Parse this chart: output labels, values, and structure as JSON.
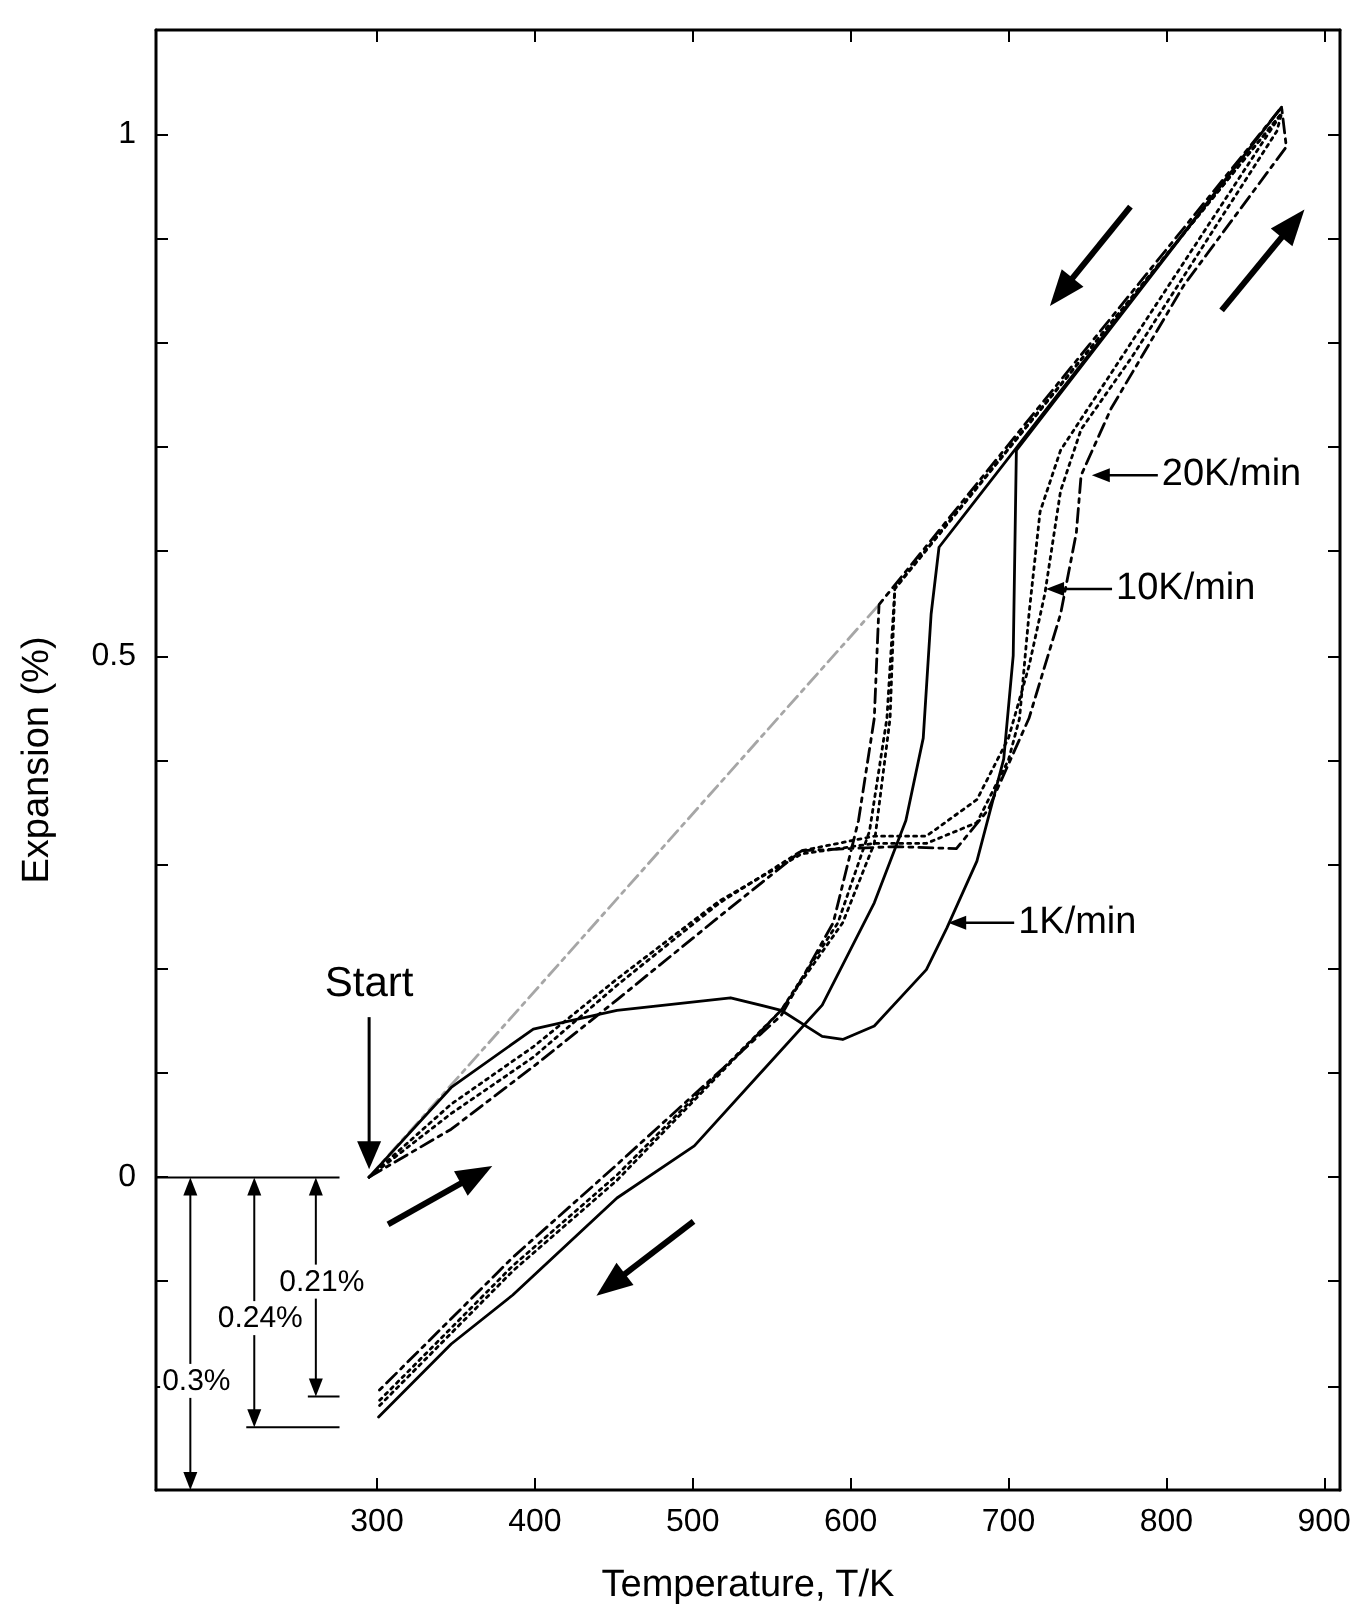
{
  "chart_data": {
    "type": "line",
    "xlabel": "Temperature, T/K",
    "ylabel": "Expansion (%)",
    "xlim": [
      160,
      910
    ],
    "xticks": [
      300,
      400,
      500,
      600,
      700,
      800,
      900
    ],
    "ylim": [
      -0.3,
      1.1
    ],
    "yticks": [
      {
        "value": -0.2,
        "label": null
      },
      {
        "value": -0.1,
        "label": null
      },
      0,
      {
        "value": 0.1,
        "label": null
      },
      {
        "value": 0.2,
        "label": null
      },
      {
        "value": 0.3,
        "label": null
      },
      {
        "value": 0.4,
        "label": null
      },
      0.5,
      {
        "value": 0.6,
        "label": null
      },
      {
        "value": 0.7,
        "label": null
      },
      {
        "value": 0.8,
        "label": null
      },
      {
        "value": 0.9,
        "label": null
      },
      1
    ],
    "marker": "none",
    "series": [
      {
        "color": "#a6a6a6",
        "line_style": "dashed",
        "x": [
          295,
          618
        ],
        "values": [
          0,
          0.549
        ]
      },
      {
        "color": "#000000",
        "line_style": "solid",
        "x": [
          295,
          347,
          399,
          452,
          524,
          556,
          582,
          595,
          615,
          648,
          661,
          680,
          697,
          703,
          705,
          873,
          656,
          651,
          646,
          635,
          615,
          582,
          501,
          452,
          386,
          347,
          301
        ],
        "values": [
          0,
          0.086,
          0.142,
          0.16,
          0.172,
          0.16,
          0.135,
          0.132,
          0.145,
          0.199,
          0.239,
          0.303,
          0.401,
          0.5,
          0.697,
          1.026,
          0.604,
          0.54,
          0.421,
          0.342,
          0.263,
          0.165,
          0.03,
          -0.02,
          -0.113,
          -0.16,
          -0.23
        ]
      },
      {
        "color": "#000000",
        "line_style": "dotted",
        "x": [
          295,
          347,
          399,
          452,
          517,
          569,
          615,
          648,
          680,
          700,
          707,
          713,
          720,
          733,
          873,
          628,
          625,
          615,
          595,
          556,
          452,
          386,
          301
        ],
        "values": [
          0,
          0.07,
          0.125,
          0.19,
          0.265,
          0.31,
          0.32,
          0.32,
          0.34,
          0.4,
          0.44,
          0.54,
          0.638,
          0.697,
          1.02,
          0.565,
          0.44,
          0.32,
          0.244,
          0.16,
          0.002,
          -0.085,
          -0.215
        ]
      },
      {
        "color": "#000000",
        "line_style": "dotted",
        "x": [
          295,
          347,
          399,
          452,
          517,
          569,
          615,
          648,
          680,
          700,
          713,
          723,
          733,
          746,
          778,
          870,
          873,
          628,
          623,
          612,
          592,
          556,
          452,
          386,
          301
        ],
        "values": [
          0,
          0.061,
          0.115,
          0.184,
          0.263,
          0.313,
          0.327,
          0.327,
          0.362,
          0.421,
          0.49,
          0.559,
          0.658,
          0.717,
          0.786,
          1.003,
          1.02,
          0.564,
          0.44,
          0.332,
          0.244,
          0.16,
          -0.003,
          -0.09,
          -0.22
        ]
      },
      {
        "color": "#000000",
        "line_style": "dashed",
        "x": [
          295,
          347,
          399,
          452,
          517,
          569,
          628,
          667,
          687,
          713,
          733,
          743,
          746,
          765,
          811,
          876,
          873,
          618,
          615,
          605,
          589,
          556,
          452,
          386,
          301
        ],
        "values": [
          0,
          0.046,
          0.106,
          0.17,
          0.25,
          0.313,
          0.317,
          0.315,
          0.352,
          0.44,
          0.54,
          0.618,
          0.673,
          0.737,
          0.855,
          0.988,
          1.026,
          0.549,
          0.44,
          0.342,
          0.244,
          0.155,
          0.012,
          -0.077,
          -0.205
        ]
      }
    ],
    "annotations": [
      "Start",
      {
        "text": "1K/min",
        "x": 658,
        "y": 0.244
      },
      {
        "text": "10K/min",
        "x": 720,
        "y": 0.564
      },
      {
        "text": "20K/min",
        "x": 749,
        "y": 0.673
      },
      "0.21%",
      "0.24%",
      "0.3%"
    ]
  }
}
